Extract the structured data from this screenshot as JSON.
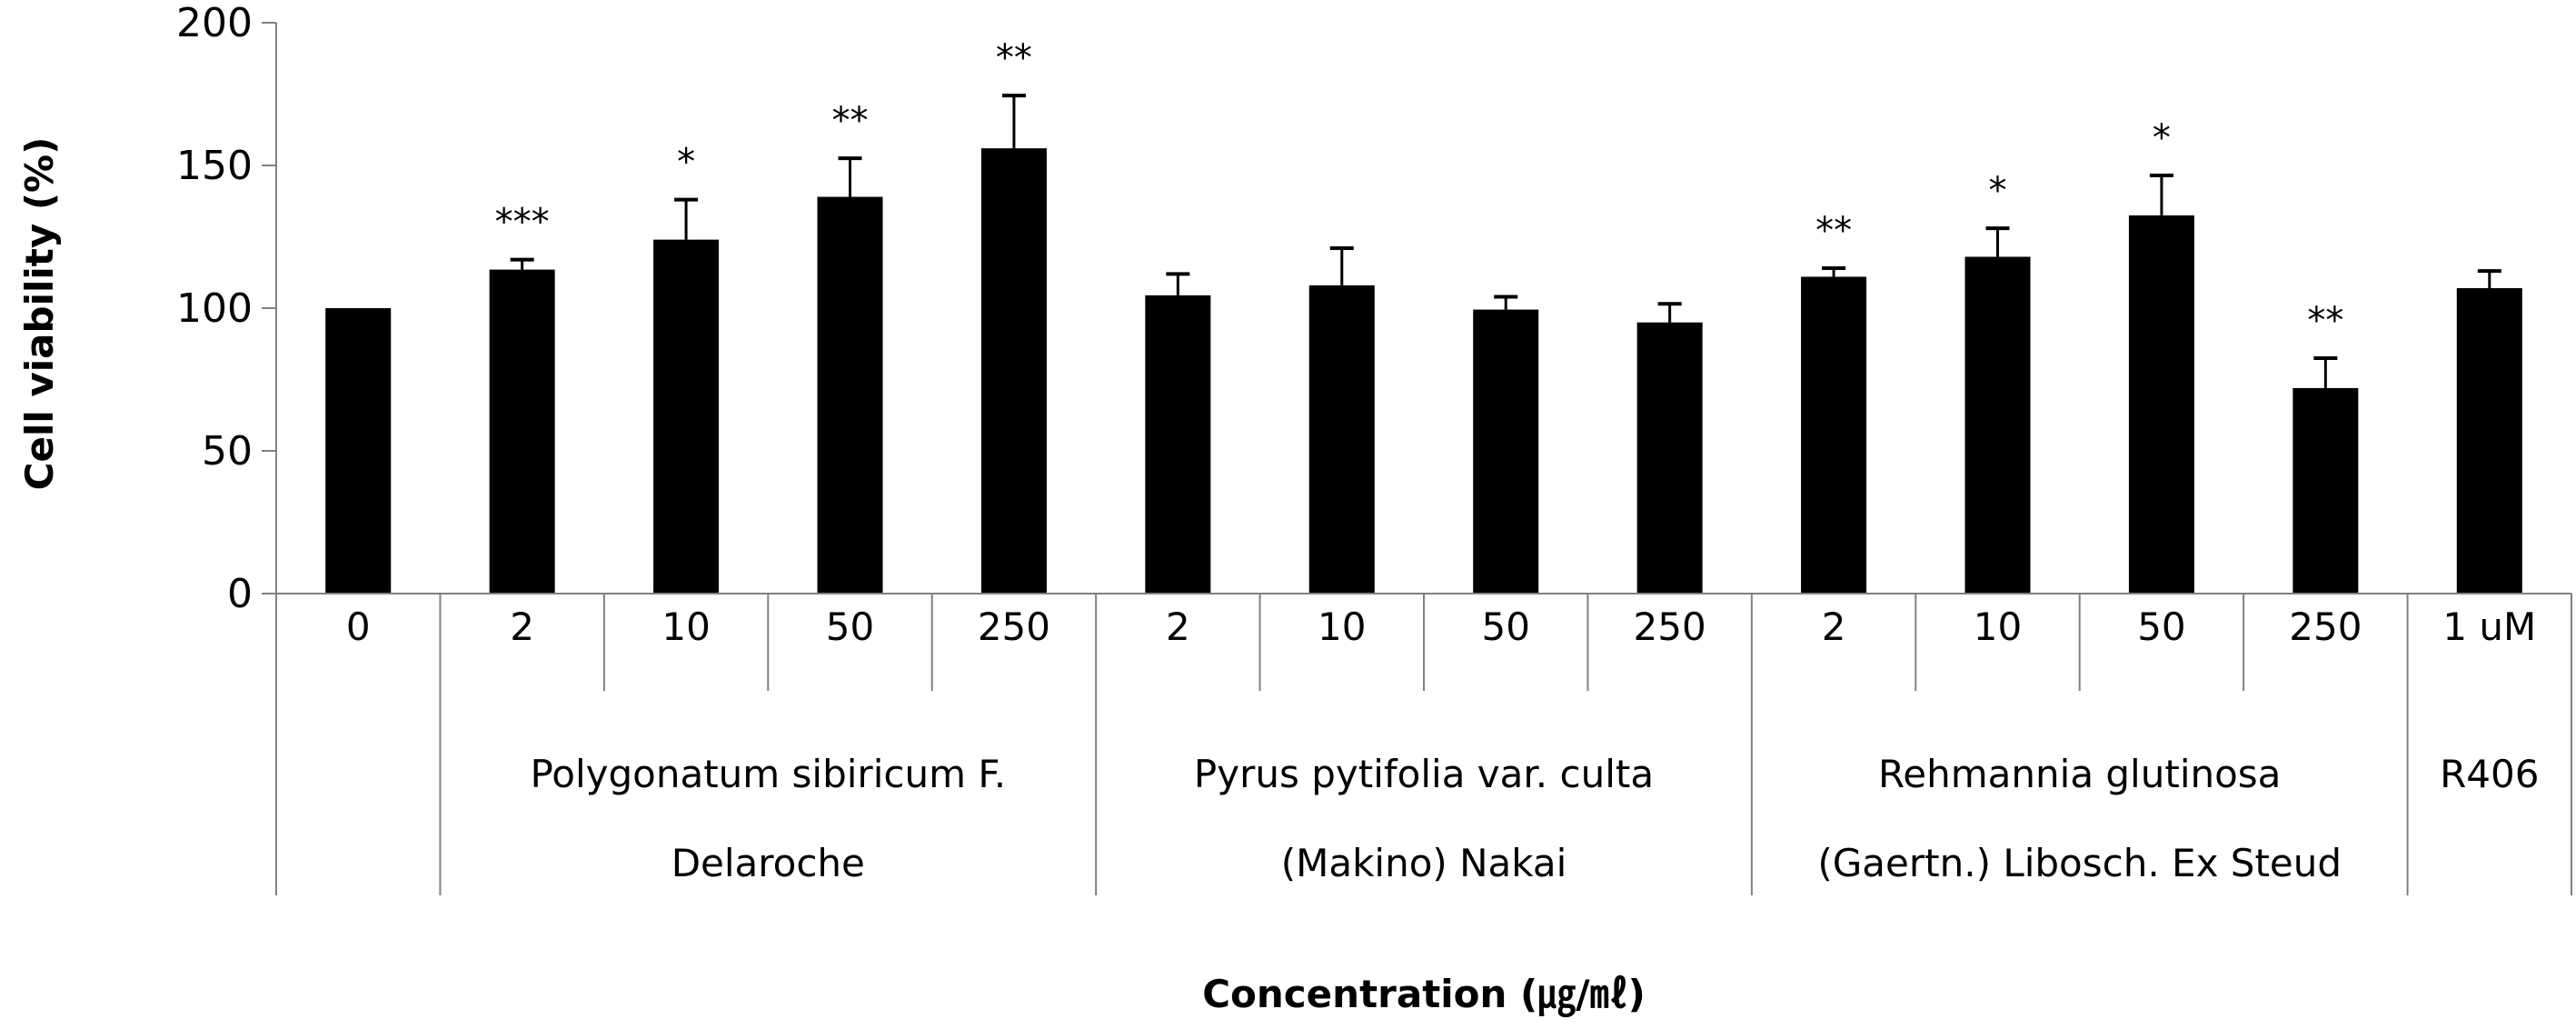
{
  "chart_data": {
    "type": "bar",
    "title": "",
    "xlabel": "Concentration (㎍/㎖)",
    "ylabel": "Cell viability (%)",
    "ylim": [
      0,
      200
    ],
    "yticks": [
      0,
      50,
      100,
      150,
      200
    ],
    "grid": false,
    "bar_color": "#000000",
    "categories": [
      "0",
      "2",
      "10",
      "50",
      "250",
      "2",
      "10",
      "50",
      "250",
      "2",
      "10",
      "50",
      "250",
      "1 uM"
    ],
    "groups": [
      {
        "label_lines": [
          ""
        ],
        "start": 0,
        "end": 0
      },
      {
        "label_lines": [
          "Polygonatum sibiricum F.",
          "Delaroche"
        ],
        "start": 1,
        "end": 4
      },
      {
        "label_lines": [
          "Pyrus pytifolia var. culta",
          "(Makino) Nakai"
        ],
        "start": 5,
        "end": 8
      },
      {
        "label_lines": [
          "Rehmannia glutinosa",
          "(Gaertn.) Libosch. Ex Steud"
        ],
        "start": 9,
        "end": 12
      },
      {
        "label_lines": [
          "R406"
        ],
        "start": 13,
        "end": 13
      }
    ],
    "values": [
      100,
      113.5,
      124,
      139,
      156,
      104.5,
      108,
      99.5,
      95,
      111,
      118,
      132.5,
      72,
      107
    ],
    "error": [
      0,
      3.5,
      14,
      13.5,
      18.5,
      7.5,
      13,
      4.5,
      6.5,
      3,
      10,
      14,
      10.5,
      6
    ],
    "significance": [
      "",
      "***",
      "*",
      "**",
      "**",
      "",
      "",
      "",
      "",
      "**",
      "*",
      "*",
      "**",
      ""
    ]
  }
}
